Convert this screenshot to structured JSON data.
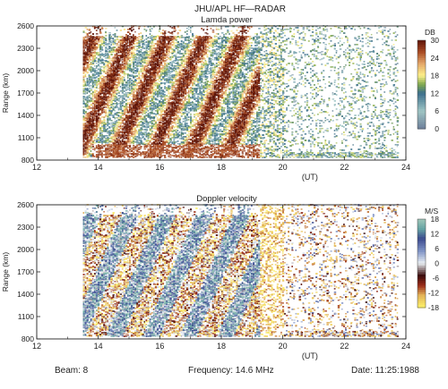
{
  "figure": {
    "title": "JHU/APL HF—RADAR",
    "footer": {
      "beam": "Beam: 8",
      "frequency": "Frequency: 14.6 MHz",
      "date": "Date: 11:25:1988"
    }
  },
  "chart_data": [
    {
      "type": "heatmap",
      "title": "Lamda power",
      "xlabel": "(UT)",
      "ylabel": "Range (km)",
      "xlim": [
        12,
        24
      ],
      "ylim": [
        800,
        2600
      ],
      "x_ticks": [
        12,
        14,
        16,
        18,
        20,
        22,
        24
      ],
      "y_ticks": [
        800,
        1100,
        1400,
        1700,
        2000,
        2300,
        2600
      ],
      "colorbar": {
        "label": "DB",
        "ticks": [
          30,
          24,
          18,
          12,
          6,
          0
        ],
        "stops": [
          {
            "v": 0,
            "c": "#6d7f9a"
          },
          {
            "v": 6,
            "c": "#9fc5c4"
          },
          {
            "v": 12,
            "c": "#3c6f8c"
          },
          {
            "v": 15,
            "c": "#7fa84e"
          },
          {
            "v": 18,
            "c": "#fdf08a"
          },
          {
            "v": 22,
            "c": "#e4a86a"
          },
          {
            "v": 26,
            "c": "#a84a24"
          },
          {
            "v": 30,
            "c": "#5e1408"
          }
        ]
      },
      "data_coverage": "echoes between about 13.5 and 23.7 UT over 800-2600 km; strong (24-30 DB) slanted bands before about 19 UT, weak scattered echoes after 19.5 UT"
    },
    {
      "type": "heatmap",
      "title": "Doppler velocity",
      "xlabel": "(UT)",
      "ylabel": "Range (km)",
      "xlim": [
        12,
        24
      ],
      "ylim": [
        800,
        2600
      ],
      "x_ticks": [
        12,
        14,
        16,
        18,
        20,
        22,
        24
      ],
      "y_ticks": [
        800,
        1100,
        1400,
        1700,
        2000,
        2300,
        2600
      ],
      "colorbar": {
        "label": "M/S",
        "ticks": [
          18,
          12,
          6,
          0,
          -6,
          -12,
          -18
        ],
        "stops": [
          {
            "v": -18,
            "c": "#fdf36a"
          },
          {
            "v": -13,
            "c": "#e3b258"
          },
          {
            "v": -9,
            "c": "#9a2a18"
          },
          {
            "v": -5,
            "c": "#3a0c0c"
          },
          {
            "v": 0,
            "c": "#e8eef2"
          },
          {
            "v": 5,
            "c": "#7f93c6"
          },
          {
            "v": 10,
            "c": "#3b4a8e"
          },
          {
            "v": 14,
            "c": "#66a4a4"
          },
          {
            "v": 18,
            "c": "#a0c7b8"
          }
        ]
      },
      "data_coverage": "echoes between about 13.5 and 23.7 UT over 800-2600 km; mixed +/-18 M/S velocities with slanted structure before about 19.5 UT, mostly negative (yellow) and weak afterwards"
    }
  ],
  "legend_colors": {
    "grid_frame": "#222222",
    "background": "#ffffff"
  }
}
